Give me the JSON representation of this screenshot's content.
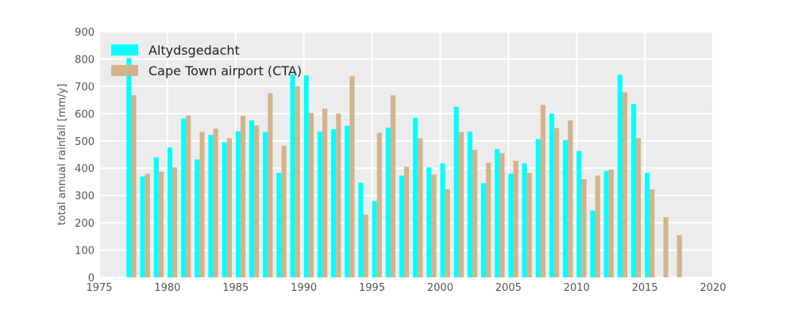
{
  "chart_data": {
    "type": "bar",
    "title": "",
    "xlabel": "",
    "ylabel": "total annual rainfall [mm/y]",
    "xlim": [
      1975,
      2020
    ],
    "ylim": [
      0,
      900
    ],
    "xticks": [
      1975,
      1980,
      1985,
      1990,
      1995,
      2000,
      2005,
      2010,
      2015,
      2020
    ],
    "yticks": [
      0,
      100,
      200,
      300,
      400,
      500,
      600,
      700,
      800,
      900
    ],
    "grid": true,
    "legend_position": "top-left",
    "background_color": "#ececec",
    "series": [
      {
        "name": "Altydsgedacht",
        "color": "#00ffff",
        "x": [
          1977,
          1978,
          1979,
          1980,
          1981,
          1982,
          1983,
          1984,
          1985,
          1986,
          1987,
          1988,
          1989,
          1990,
          1991,
          1992,
          1993,
          1994,
          1995,
          1996,
          1997,
          1998,
          1999,
          2000,
          2001,
          2002,
          2003,
          2004,
          2005,
          2006,
          2007,
          2008,
          2009,
          2010,
          2011,
          2012,
          2013,
          2014,
          2015
        ],
        "values": [
          803,
          370,
          440,
          476,
          582,
          432,
          522,
          495,
          535,
          575,
          533,
          383,
          744,
          740,
          534,
          543,
          555,
          347,
          280,
          548,
          373,
          585,
          403,
          417,
          625,
          534,
          345,
          470,
          380,
          418,
          507,
          600,
          503,
          463,
          245,
          390,
          742,
          635,
          383
        ]
      },
      {
        "name": "Cape Town airport (CTA)",
        "color": "#d2b48c",
        "x": [
          1977,
          1978,
          1979,
          1980,
          1981,
          1982,
          1983,
          1984,
          1985,
          1986,
          1987,
          1988,
          1989,
          1990,
          1991,
          1992,
          1993,
          1994,
          1995,
          1996,
          1997,
          1998,
          1999,
          2000,
          2001,
          2002,
          2003,
          2004,
          2005,
          2006,
          2007,
          2008,
          2009,
          2010,
          2011,
          2012,
          2013,
          2014,
          2015,
          2016,
          2017
        ],
        "values": [
          667,
          380,
          387,
          403,
          593,
          533,
          545,
          510,
          592,
          557,
          675,
          482,
          700,
          602,
          618,
          600,
          737,
          230,
          530,
          667,
          405,
          510,
          377,
          323,
          533,
          467,
          420,
          455,
          427,
          383,
          632,
          547,
          575,
          360,
          373,
          395,
          678,
          510,
          322,
          220,
          155
        ]
      }
    ]
  }
}
